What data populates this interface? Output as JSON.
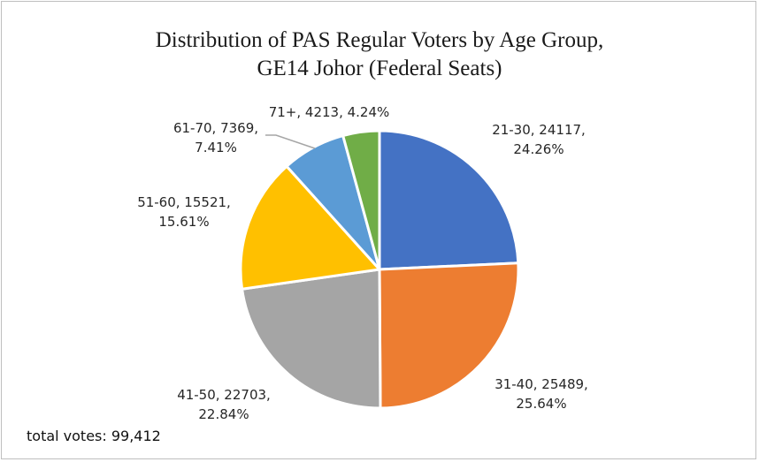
{
  "chart_data": {
    "type": "pie",
    "title_line1": "Distribution of PAS Regular Voters by Age Group,",
    "title_line2": "GE14 Johor (Federal Seats)",
    "categories": [
      "21-30",
      "31-40",
      "41-50",
      "51-60",
      "61-70",
      "71+"
    ],
    "values": [
      24117,
      25489,
      22703,
      15521,
      7369,
      4213
    ],
    "percents": [
      "24.26%",
      "25.64%",
      "22.84%",
      "15.61%",
      "7.41%",
      "4.24%"
    ],
    "colors": [
      "#4472C4",
      "#ED7D31",
      "#A5A5A5",
      "#FFC000",
      "#5B9BD5",
      "#70AD47"
    ],
    "label_lines": [
      [
        "21-30, 24117,",
        "24.26%"
      ],
      [
        "31-40, 25489,",
        "25.64%"
      ],
      [
        "41-50, 22703,",
        "22.84%"
      ],
      [
        "51-60, 15521,",
        "15.61%"
      ],
      [
        "61-70, 7369,",
        "7.41%"
      ],
      [
        "71+, 4213, 4.24%"
      ]
    ],
    "start_angle_deg": 0,
    "direction": "clockwise",
    "legend": "none"
  },
  "footer": {
    "total_text": "total votes: 99,412"
  }
}
